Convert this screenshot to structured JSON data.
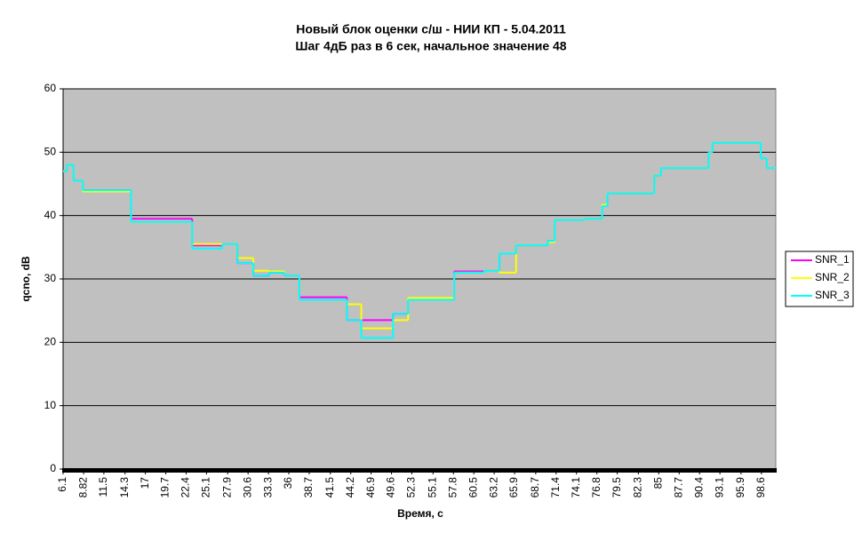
{
  "chart_data": {
    "type": "line",
    "step": "post",
    "title": "Новый блок оценки с/ш - НИИ КП - 5.04.2011",
    "subtitle": "Шаг 4дБ раз в 6 сек, начальное значение 48",
    "xlabel": "Время, с",
    "ylabel": "qcno, dB",
    "x": [
      6.1,
      6.6,
      7.5,
      8.7,
      15.1,
      23.2,
      27.2,
      29.2,
      31.3,
      33.4,
      35.4,
      37.4,
      43.7,
      45.6,
      49.8,
      51.8,
      57.9,
      61.9,
      63.9,
      66.1,
      70.3,
      71.2,
      75.1,
      77.5,
      78.2,
      84.4,
      85.3,
      91.6,
      92.1,
      98.5,
      99.3
    ],
    "series": [
      {
        "name": "SNR_1",
        "color": "#ff00ff",
        "values": [
          47,
          48,
          45.5,
          44,
          39.5,
          35.3,
          35.5,
          32.5,
          30.5,
          31,
          30.5,
          27.1,
          23.5,
          23.5,
          24.5,
          26.7,
          31.2,
          31.3,
          34,
          35.3,
          36,
          39.3,
          39.5,
          41.5,
          43.5,
          46.3,
          47.5,
          50,
          51.5,
          49,
          47.5
        ]
      },
      {
        "name": "SNR_2",
        "color": "#ffff00",
        "values": [
          47,
          48,
          45.5,
          43.8,
          39,
          35.5,
          35.5,
          33.3,
          31.3,
          31.2,
          30.5,
          26.7,
          26,
          22.2,
          23.5,
          27,
          31,
          31.3,
          31,
          35.3,
          35.8,
          39.3,
          39.5,
          41.7,
          43.5,
          46.3,
          47.5,
          50,
          51.5,
          49,
          47.5
        ]
      },
      {
        "name": "SNR_3",
        "color": "#00ffff",
        "values": [
          47,
          48,
          45.5,
          44,
          39,
          34.8,
          35.5,
          32.5,
          30.5,
          31,
          30.5,
          26.7,
          23.5,
          20.7,
          24.5,
          26.7,
          31,
          31.3,
          34,
          35.3,
          36,
          39.3,
          39.5,
          41.5,
          43.5,
          46.3,
          47.5,
          50,
          51.5,
          49,
          47.5
        ]
      }
    ],
    "xlim": [
      6.1,
      100.5
    ],
    "xticks": [
      6.1,
      8.82,
      11.5,
      14.3,
      17,
      19.7,
      22.4,
      25.1,
      27.9,
      30.6,
      33.3,
      36,
      38.7,
      41.5,
      44.2,
      46.9,
      49.6,
      52.3,
      55.1,
      57.8,
      60.5,
      63.2,
      65.9,
      68.7,
      71.4,
      74.1,
      76.8,
      79.5,
      82.3,
      85,
      87.7,
      90.4,
      93.1,
      95.9,
      98.6
    ],
    "ylim": [
      0,
      60
    ],
    "yticks": [
      0,
      10,
      20,
      30,
      40,
      50,
      60
    ],
    "grid": true,
    "legend": "right",
    "plot_background": "#c0c0c0"
  }
}
